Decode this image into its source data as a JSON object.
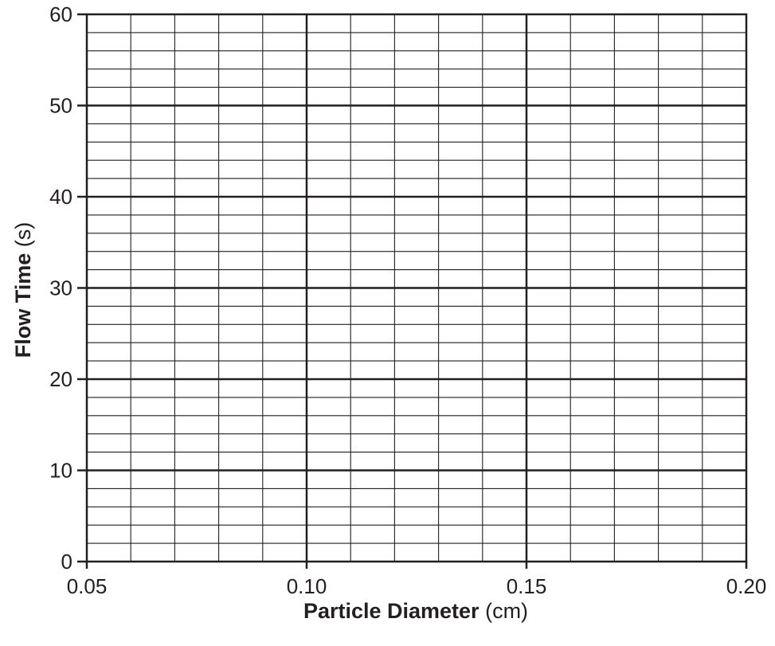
{
  "chart_data": {
    "type": "scatter",
    "series": [],
    "xlabel": {
      "main": "Particle Diameter",
      "unit": "(cm)"
    },
    "ylabel": {
      "main": "Flow Time",
      "unit": "(s)"
    },
    "xlim": [
      0.05,
      0.2
    ],
    "ylim": [
      0,
      60
    ],
    "x_major_ticks": [
      0.05,
      0.1,
      0.15,
      0.2
    ],
    "x_tick_labels": [
      "0.05",
      "0.10",
      "0.15",
      "0.20"
    ],
    "x_minor_step": 0.01,
    "y_major_ticks": [
      0,
      10,
      20,
      30,
      40,
      50,
      60
    ],
    "y_tick_labels": [
      "0",
      "10",
      "20",
      "30",
      "40",
      "50",
      "60"
    ],
    "y_minor_step": 2,
    "grid": true,
    "colors": {
      "lines": "#231f20",
      "background": "#ffffff"
    }
  }
}
